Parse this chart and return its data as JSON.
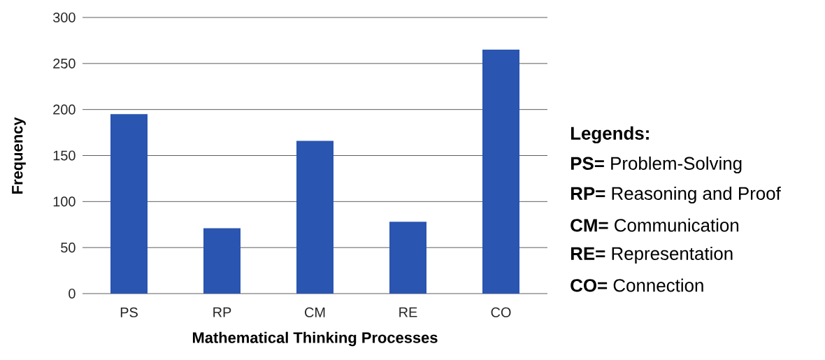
{
  "chart_data": {
    "type": "bar",
    "xlabel": "Mathematical Thinking Processes",
    "ylabel": "Frequency",
    "categories": [
      "PS",
      "RP",
      "CM",
      "RE",
      "CO"
    ],
    "values": [
      195,
      71,
      166,
      78,
      265
    ],
    "color": "#2a55b0",
    "ylim": [
      0,
      300
    ],
    "yticks": [
      0,
      50,
      100,
      150,
      200,
      250,
      300
    ],
    "grid": "y",
    "annotations": [
      "Legends:",
      "**PS=** Problem-Solving",
      "**RP=** Reasoning and Proof",
      "**CM=** Communication",
      "**RE=** Representation",
      "**CO=** Connection"
    ]
  }
}
